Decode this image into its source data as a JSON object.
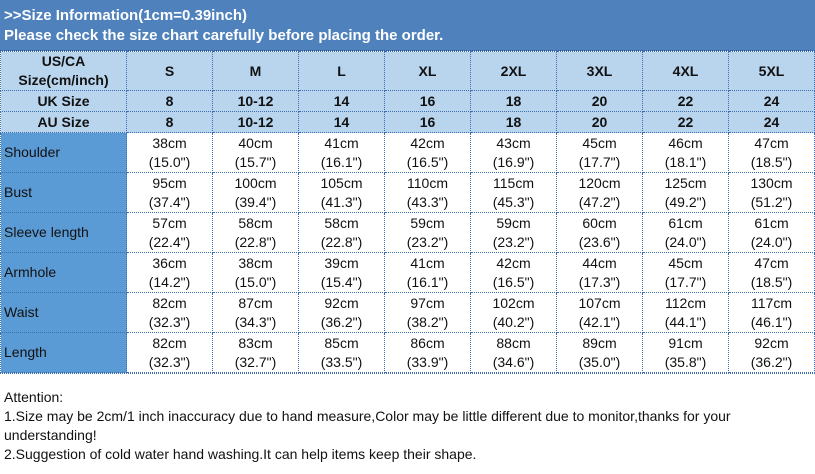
{
  "banner": {
    "line1": ">>Size Information(1cm=0.39inch)",
    "line2": "Please check the size chart carefully before placing the order."
  },
  "header": {
    "label_line1": "US/CA",
    "label_line2": "Size(cm/inch)",
    "sizes": [
      "S",
      "M",
      "L",
      "XL",
      "2XL",
      "3XL",
      "4XL",
      "5XL"
    ]
  },
  "uk": {
    "label": "UK Size",
    "values": [
      "8",
      "10-12",
      "14",
      "16",
      "18",
      "20",
      "22",
      "24"
    ]
  },
  "au": {
    "label": "AU Size",
    "values": [
      "8",
      "10-12",
      "14",
      "16",
      "18",
      "20",
      "22",
      "24"
    ]
  },
  "rows": [
    {
      "label": "Shoulder",
      "cm": [
        "38cm",
        "40cm",
        "41cm",
        "42cm",
        "43cm",
        "45cm",
        "46cm",
        "47cm"
      ],
      "in": [
        "(15.0\")",
        "(15.7\")",
        "(16.1\")",
        "(16.5\")",
        "(16.9\")",
        "(17.7\")",
        "(18.1\")",
        "(18.5\")"
      ]
    },
    {
      "label": "Bust",
      "cm": [
        "95cm",
        "100cm",
        "105cm",
        "110cm",
        "115cm",
        "120cm",
        "125cm",
        "130cm"
      ],
      "in": [
        "(37.4\")",
        "(39.4\")",
        "(41.3\")",
        "(43.3\")",
        "(45.3\")",
        "(47.2\")",
        "(49.2\")",
        "(51.2\")"
      ]
    },
    {
      "label": "Sleeve length",
      "cm": [
        "57cm",
        "58cm",
        "58cm",
        "59cm",
        "59cm",
        "60cm",
        "61cm",
        "61cm"
      ],
      "in": [
        "(22.4\")",
        "(22.8\")",
        "(22.8\")",
        "(23.2\")",
        "(23.2\")",
        "(23.6\")",
        "(24.0\")",
        "(24.0\")"
      ]
    },
    {
      "label": "Armhole",
      "cm": [
        "36cm",
        "38cm",
        "39cm",
        "41cm",
        "42cm",
        "44cm",
        "45cm",
        "47cm"
      ],
      "in": [
        "(14.2\")",
        "(15.0\")",
        "(15.4\")",
        "(16.1\")",
        "(16.5\")",
        "(17.3\")",
        "(17.7\")",
        "(18.5\")"
      ]
    },
    {
      "label": "Waist",
      "cm": [
        "82cm",
        "87cm",
        "92cm",
        "97cm",
        "102cm",
        "107cm",
        "112cm",
        "117cm"
      ],
      "in": [
        "(32.3\")",
        "(34.3\")",
        "(36.2\")",
        "(38.2\")",
        "(40.2\")",
        "(42.1\")",
        "(44.1\")",
        "(46.1\")"
      ]
    },
    {
      "label": "Length",
      "cm": [
        "82cm",
        "83cm",
        "85cm",
        "86cm",
        "88cm",
        "89cm",
        "91cm",
        "92cm"
      ],
      "in": [
        "(32.3\")",
        "(32.7\")",
        "(33.5\")",
        "(33.9\")",
        "(34.6\")",
        "(35.0\")",
        "(35.8\")",
        "(36.2\")"
      ]
    }
  ],
  "attention": {
    "title": "Attention:",
    "line1": "1.Size may be 2cm/1 inch inaccuracy due to hand measure,Color may be little different due to monitor,thanks for your understanding!",
    "line2": "2.Suggestion of cold water hand washing.It can help items keep their shape."
  },
  "colors": {
    "banner": "#4f81bd",
    "header": "#b9d5ee",
    "label_column": "#5b9bd5"
  }
}
